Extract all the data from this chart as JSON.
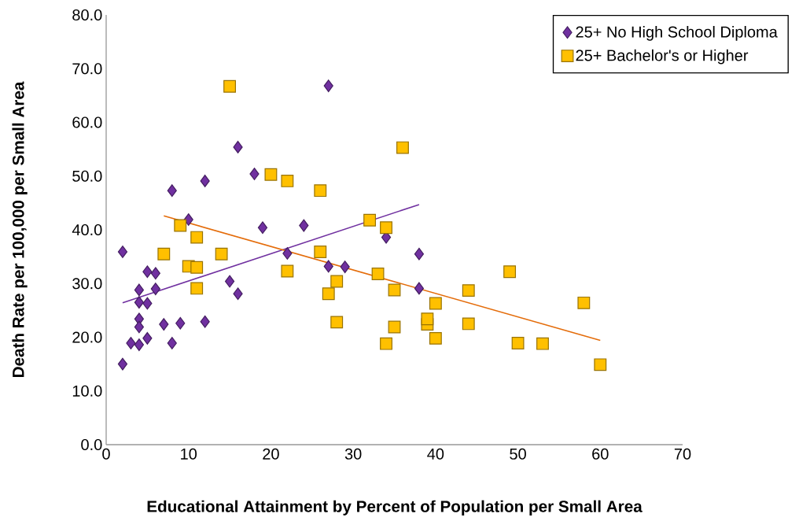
{
  "chart_data": {
    "type": "scatter",
    "xlabel": "Educational Attainment by Percent of Population per Small Area",
    "ylabel": "Death Rate per 100,000 per Small Area",
    "xlim": [
      0,
      70
    ],
    "xticks": [
      0,
      10,
      20,
      30,
      40,
      50,
      60,
      70
    ],
    "ylim": [
      0,
      80
    ],
    "yticks": [
      {
        "value": 0,
        "label": "0.0"
      },
      {
        "value": 10,
        "label": "10.0"
      },
      {
        "value": 20,
        "label": "20.0"
      },
      {
        "value": 30,
        "label": "30.0"
      },
      {
        "value": 40,
        "label": "40.0"
      },
      {
        "value": 50,
        "label": "50.0"
      },
      {
        "value": 60,
        "label": "60.0"
      },
      {
        "value": 70,
        "label": "70.0"
      },
      {
        "value": 80,
        "label": "80.0"
      }
    ],
    "legend": "top right",
    "series": [
      {
        "name": "25+  No High School Diploma",
        "marker": "diamond",
        "color": "#7030a0",
        "x": [
          2,
          5,
          6,
          4,
          6,
          4,
          5,
          4,
          4,
          7,
          9,
          12,
          3,
          4,
          5,
          8,
          2,
          8,
          12,
          16,
          18,
          10,
          19,
          24,
          27,
          22,
          15,
          16,
          27,
          29,
          34,
          38,
          38
        ],
        "values": [
          35.9,
          32.2,
          31.9,
          28.8,
          29.0,
          26.5,
          26.3,
          23.4,
          21.9,
          22.4,
          22.6,
          22.9,
          18.9,
          18.6,
          19.8,
          18.9,
          15.0,
          47.3,
          49.1,
          55.4,
          50.4,
          41.9,
          40.4,
          40.8,
          66.8,
          35.6,
          30.4,
          28.1,
          33.2,
          33.1,
          38.6,
          35.5,
          29.1
        ]
      },
      {
        "name": "25+  Bachelor's or Higher",
        "marker": "square",
        "color": "#ffc000",
        "x": [
          15,
          20,
          22,
          26,
          9,
          11,
          7,
          14,
          10,
          11,
          11,
          26,
          22,
          28,
          27,
          28,
          36,
          32,
          34,
          33,
          35,
          40,
          44,
          49,
          35,
          34,
          39,
          39,
          40,
          44,
          50,
          53,
          58,
          60
        ],
        "values": [
          66.7,
          50.3,
          49.1,
          47.3,
          40.8,
          38.6,
          35.5,
          35.5,
          33.2,
          33.0,
          29.1,
          35.9,
          32.3,
          30.4,
          28.1,
          22.8,
          55.3,
          41.8,
          40.4,
          31.8,
          28.8,
          26.3,
          28.7,
          32.2,
          21.9,
          18.8,
          22.4,
          23.4,
          19.8,
          22.5,
          18.9,
          18.8,
          26.4,
          14.9
        ]
      },
      {
        "type": "line",
        "color": "#7030a0",
        "x": [
          2,
          38
        ],
        "values": [
          26.4,
          44.7
        ]
      },
      {
        "type": "line",
        "color": "#e46c0a",
        "x": [
          7,
          60
        ],
        "values": [
          42.6,
          19.4
        ]
      }
    ]
  }
}
